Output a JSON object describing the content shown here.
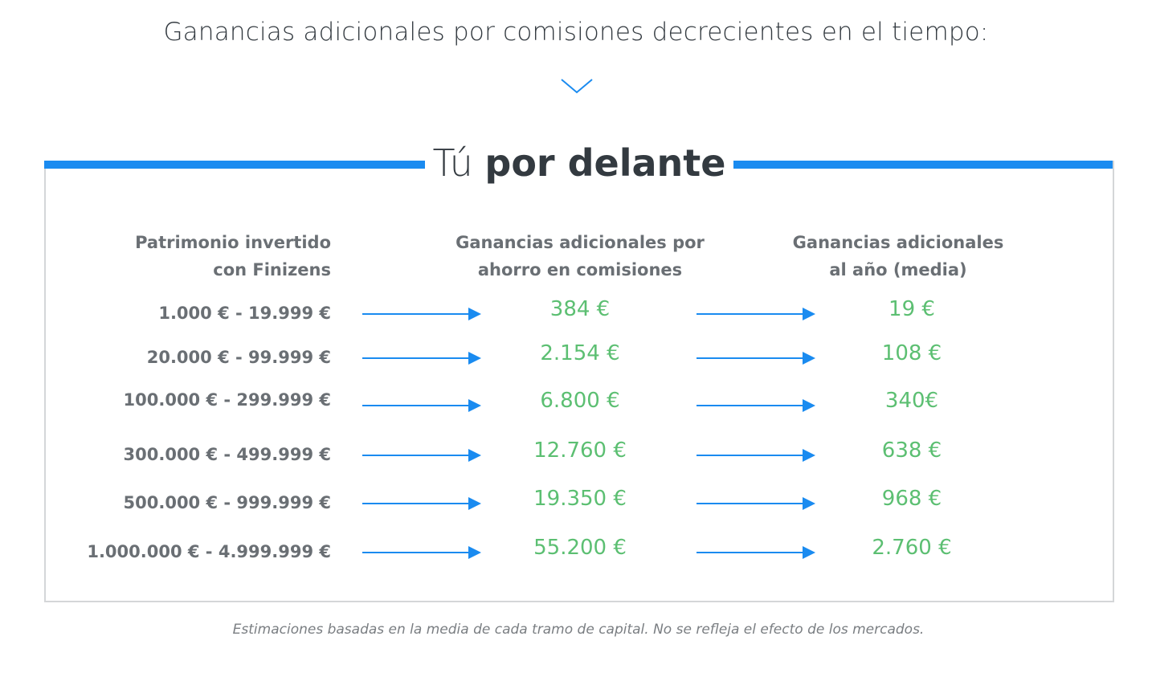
{
  "header": {
    "heading": "Ganancias adicionales por comisiones decrecientes en el tiempo:",
    "chevron_icon": "chevron-down-icon"
  },
  "panel": {
    "title_light": "Tú",
    "title_bold": "por delante",
    "accent_color": "#1a8bf0",
    "value_color": "#5cbf72",
    "columns": {
      "invested_line1": "Patrimonio invertido",
      "invested_line2": "con Finizens",
      "savings_line1": "Ganancias adicionales por",
      "savings_line2": "ahorro en comisiones",
      "yearly_line1": "Ganancias adicionales",
      "yearly_line2": "al año (media)"
    },
    "rows": [
      {
        "range": "1.000 € - 19.999 €",
        "savings": "384 €",
        "yearly": "19 €"
      },
      {
        "range": "20.000 € - 99.999 €",
        "savings": "2.154 €",
        "yearly": "108 €"
      },
      {
        "range": "100.000 € - 299.999 €",
        "savings": "6.800 €",
        "yearly": "340€"
      },
      {
        "range": "300.000 € - 499.999 €",
        "savings": "12.760 €",
        "yearly": "638 €"
      },
      {
        "range": "500.000 € - 999.999 €",
        "savings": "19.350 €",
        "yearly": "968 €"
      },
      {
        "range": "1.000.000 € - 4.999.999 €",
        "savings": "55.200 €",
        "yearly": "2.760 €"
      }
    ]
  },
  "footer": {
    "note": "Estimaciones basadas en la media de cada tramo de capital. No se refleja el efecto de los mercados."
  }
}
